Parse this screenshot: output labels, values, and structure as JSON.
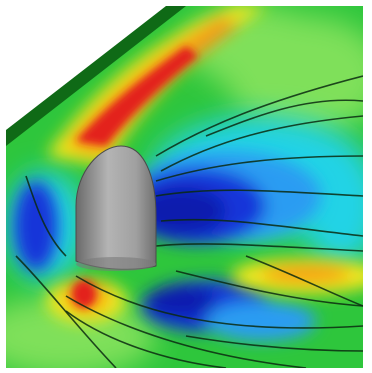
{
  "image": {
    "subject": "cfd-flow-contour",
    "palette": {
      "green": "#2ec63c",
      "light_green": "#7fe05a",
      "yellow": "#f4e81e",
      "orange": "#f59a18",
      "red": "#e3201a",
      "cyan": "#21d3e6",
      "light_blue": "#2a9cf2",
      "blue": "#1636d9",
      "dark_blue": "#0b1fae",
      "body_gray": "#9c9c9c",
      "wall_dark": "#0f6a16",
      "background": "#ffffff"
    }
  }
}
